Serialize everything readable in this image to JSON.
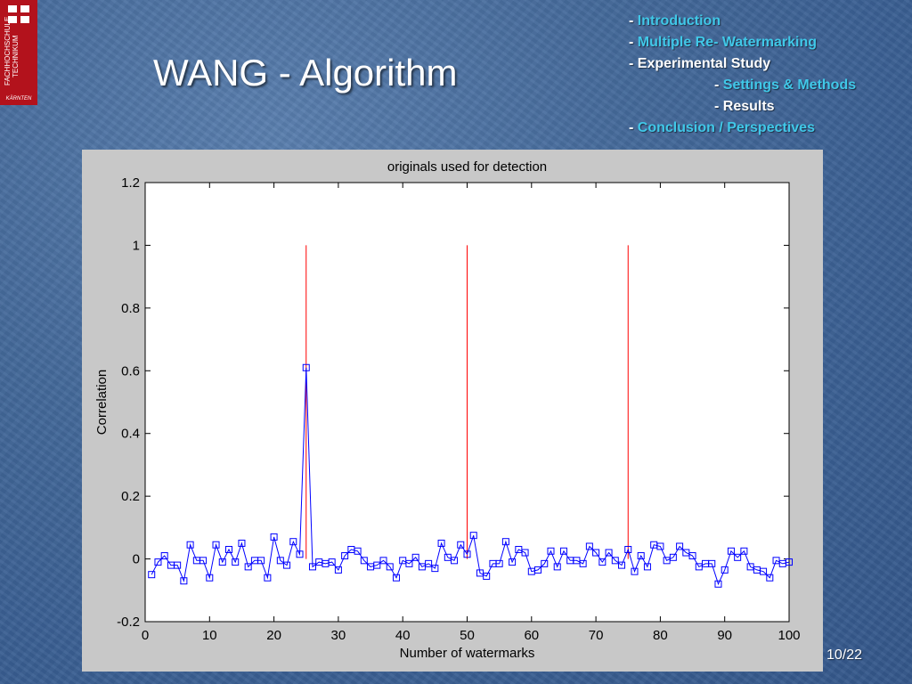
{
  "slide": {
    "title": "WANG - Algorithm",
    "page": "10/22"
  },
  "logo": {
    "vertical_text": "FACHHOCHSCHULE TECHNIKUM",
    "sub_text": "KÄRNTEN"
  },
  "outline": [
    {
      "prefix": "- ",
      "text": "Introduction",
      "highlight": true,
      "indent": false
    },
    {
      "prefix": "- ",
      "text": "Multiple Re- Watermarking",
      "highlight": true,
      "indent": false
    },
    {
      "prefix": "- ",
      "text": "Experimental Study",
      "highlight": false,
      "indent": false
    },
    {
      "prefix": "- ",
      "text": "Settings & Methods",
      "highlight": true,
      "indent": true
    },
    {
      "prefix": "- ",
      "text": "Results",
      "highlight": false,
      "indent": true
    },
    {
      "prefix": "- ",
      "text": "Conclusion / Perspectives",
      "highlight": true,
      "indent": false
    }
  ],
  "colors": {
    "highlight": "#40c8e8",
    "series_blue": "#0000ff",
    "series_red": "#ff0000",
    "logo_red": "#b3121c"
  },
  "chart_data": {
    "type": "line",
    "title": "originals used for detection",
    "xlabel": "Number of watermarks",
    "ylabel": "Correlation",
    "xlim": [
      0,
      100
    ],
    "ylim": [
      -0.2,
      1.2
    ],
    "xticks": [
      0,
      10,
      20,
      30,
      40,
      50,
      60,
      70,
      80,
      90,
      100
    ],
    "yticks": [
      -0.2,
      0,
      0.2,
      0.4,
      0.6,
      0.8,
      1,
      1.2
    ],
    "ytick_labels": [
      "-0.2",
      "0",
      "0.2",
      "0.4",
      "0.6",
      "0.8",
      "1",
      "1.2"
    ],
    "grid": false,
    "legend": "none",
    "series": [
      {
        "marker": "square",
        "color": "#0000ff",
        "x": [
          1,
          2,
          3,
          4,
          5,
          6,
          7,
          8,
          9,
          10,
          11,
          12,
          13,
          14,
          15,
          16,
          17,
          18,
          19,
          20,
          21,
          22,
          23,
          24,
          25,
          26,
          27,
          28,
          29,
          30,
          31,
          32,
          33,
          34,
          35,
          36,
          37,
          38,
          39,
          40,
          41,
          42,
          43,
          44,
          45,
          46,
          47,
          48,
          49,
          50,
          51,
          52,
          53,
          54,
          55,
          56,
          57,
          58,
          59,
          60,
          61,
          62,
          63,
          64,
          65,
          66,
          67,
          68,
          69,
          70,
          71,
          72,
          73,
          74,
          75,
          76,
          77,
          78,
          79,
          80,
          81,
          82,
          83,
          84,
          85,
          86,
          87,
          88,
          89,
          90,
          91,
          92,
          93,
          94,
          95,
          96,
          97,
          98,
          99,
          100
        ],
        "values": [
          -0.05,
          -0.01,
          0.01,
          -0.02,
          -0.02,
          -0.07,
          0.045,
          -0.005,
          -0.005,
          -0.06,
          0.045,
          -0.01,
          0.03,
          -0.01,
          0.05,
          -0.025,
          -0.005,
          -0.005,
          -0.06,
          0.07,
          -0.005,
          -0.02,
          0.055,
          0.015,
          0.61,
          -0.025,
          -0.01,
          -0.015,
          -0.01,
          -0.035,
          0.01,
          0.03,
          0.025,
          -0.005,
          -0.025,
          -0.02,
          -0.005,
          -0.025,
          -0.06,
          -0.005,
          -0.015,
          0.005,
          -0.025,
          -0.015,
          -0.03,
          0.05,
          0.005,
          -0.005,
          0.045,
          0.015,
          0.075,
          -0.045,
          -0.055,
          -0.015,
          -0.015,
          0.055,
          -0.01,
          0.03,
          0.02,
          -0.04,
          -0.035,
          -0.015,
          0.025,
          -0.025,
          0.025,
          -0.005,
          -0.005,
          -0.015,
          0.04,
          0.02,
          -0.01,
          0.02,
          -0.005,
          -0.02,
          0.03,
          -0.04,
          0.01,
          -0.025,
          0.045,
          0.04,
          -0.005,
          0.005,
          0.04,
          0.02,
          0.01,
          -0.025,
          -0.015,
          -0.015,
          -0.08,
          -0.035,
          0.025,
          0.005,
          0.025,
          -0.025,
          -0.035,
          -0.04,
          -0.06,
          -0.005,
          -0.015,
          -0.01
        ]
      },
      {
        "type": "stem",
        "color": "#ff0000",
        "x": [
          25,
          50,
          75
        ],
        "values": [
          1,
          1,
          1
        ]
      }
    ]
  }
}
